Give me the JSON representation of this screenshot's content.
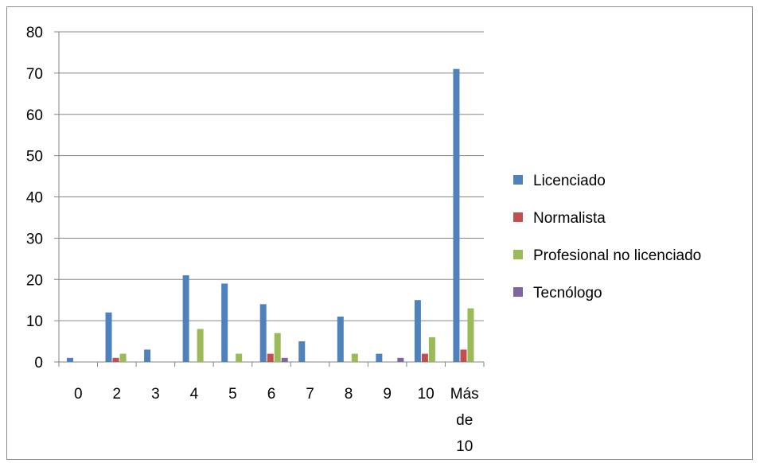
{
  "chart_data": {
    "type": "bar",
    "categories": [
      [
        "0"
      ],
      [
        "2"
      ],
      [
        "3"
      ],
      [
        "4"
      ],
      [
        "5"
      ],
      [
        "6"
      ],
      [
        "7"
      ],
      [
        "8"
      ],
      [
        "9"
      ],
      [
        "10"
      ],
      [
        "Más",
        "de",
        "10"
      ]
    ],
    "series": [
      {
        "name": "Licenciado",
        "color": "#4f81bd",
        "values": [
          1,
          12,
          3,
          21,
          19,
          14,
          5,
          11,
          2,
          15,
          71
        ]
      },
      {
        "name": "Normalista",
        "color": "#c0504d",
        "values": [
          0,
          1,
          0,
          0,
          0,
          2,
          0,
          0,
          0,
          2,
          3
        ]
      },
      {
        "name": "Profesional no licenciado",
        "color": "#9bbb59",
        "values": [
          0,
          2,
          0,
          8,
          2,
          7,
          0,
          2,
          0,
          6,
          13
        ]
      },
      {
        "name": "Tecnólogo",
        "color": "#8064a2",
        "values": [
          0,
          0,
          0,
          0,
          0,
          1,
          0,
          0,
          1,
          0,
          0
        ]
      }
    ],
    "yticks": [
      0,
      10,
      20,
      30,
      40,
      50,
      60,
      70,
      80
    ],
    "ylim": [
      0,
      80
    ],
    "grid": true,
    "legend_position": "right"
  }
}
